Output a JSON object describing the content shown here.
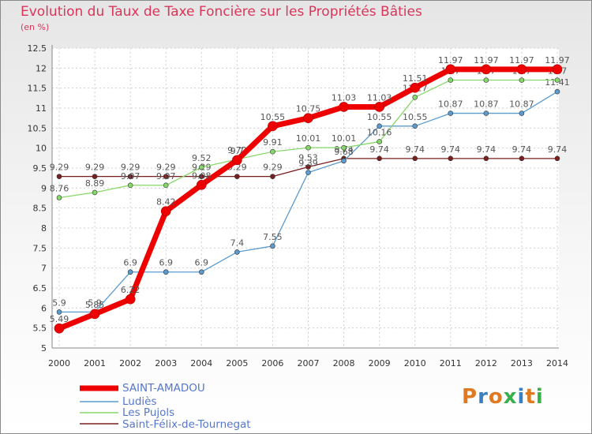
{
  "chart_data": {
    "type": "line",
    "title": "Evolution du Taux de Taxe Foncière sur les Propriétés Bâties",
    "unit_label": "(en %)",
    "x": [
      "2000",
      "2001",
      "2002",
      "2003",
      "2004",
      "2005",
      "2006",
      "2007",
      "2008",
      "2009",
      "2010",
      "2011",
      "2012",
      "2013",
      "2014"
    ],
    "ylim": [
      5,
      12.5
    ],
    "yticks": [
      "5",
      "5.5",
      "6",
      "6.5",
      "7",
      "7.5",
      "8",
      "8.5",
      "9",
      "9.5",
      "10",
      "10.5",
      "11",
      "11.5",
      "12",
      "12.5"
    ],
    "grid": true,
    "series": [
      {
        "name": "Saint-Félix-de-Tournegat",
        "color": "#7a1f1f",
        "width": 1.3,
        "values": [
          9.29,
          9.29,
          9.29,
          9.29,
          9.29,
          9.29,
          9.29,
          9.53,
          9.74,
          9.74,
          9.74,
          9.74,
          9.74,
          9.74,
          9.74
        ],
        "labels": [
          "9.29",
          "9.29",
          "9.29",
          "9.29",
          "9.29",
          "9.29",
          "9.29",
          "9.53",
          "9.74",
          "9.74",
          "9.74",
          "9.74",
          "9.74",
          "9.74",
          "9.74"
        ]
      },
      {
        "name": "Ludiès",
        "color": "#5c9bcf",
        "width": 1.3,
        "values": [
          5.9,
          5.9,
          6.9,
          6.9,
          6.9,
          7.4,
          7.55,
          9.39,
          9.68,
          10.55,
          10.55,
          10.87,
          10.87,
          10.87,
          11.41
        ],
        "labels": [
          "5.9",
          "5.9",
          "6.9",
          "6.9",
          "6.9",
          "7.4",
          "7.55",
          "9.39",
          "9.68",
          "10.55",
          "10.55",
          "10.87",
          "10.87",
          "10.87",
          "11.41"
        ]
      },
      {
        "name": "Les Pujols",
        "color": "#86d86a",
        "width": 1.3,
        "values": [
          8.76,
          8.89,
          9.07,
          9.07,
          9.52,
          9.72,
          9.91,
          10.01,
          10.01,
          10.16,
          11.27,
          11.7,
          11.7,
          11.7,
          11.7
        ],
        "labels": [
          "8.76",
          "8.89",
          "9.07",
          "9.07",
          "9.52",
          "9.72",
          "9.91",
          "10.01",
          "10.01",
          "10.16",
          "11.27",
          "11.7",
          "11.7",
          "11.7",
          "11.7"
        ]
      },
      {
        "name": "SAINT-AMADOU",
        "color": "#ee0000",
        "width": 7,
        "values": [
          5.49,
          5.85,
          6.22,
          8.42,
          9.08,
          9.7,
          10.55,
          10.75,
          11.03,
          11.03,
          11.51,
          11.97,
          11.97,
          11.97,
          11.97
        ],
        "labels": [
          "5.49",
          "5.85",
          "6.22",
          "8.42",
          "9.08",
          "9.7",
          "10.55",
          "10.75",
          "11.03",
          "11.03",
          "11.51",
          "11.97",
          "11.97",
          "11.97",
          "11.97"
        ]
      }
    ]
  },
  "legend": [
    {
      "label": "SAINT-AMADOU",
      "color": "#ee0000"
    },
    {
      "label": "Ludiès",
      "color": "#5c9bcf"
    },
    {
      "label": "Les Pujols",
      "color": "#86d86a"
    },
    {
      "label": "Saint-Félix-de-Tournegat",
      "color": "#7a1f1f"
    }
  ],
  "logo": {
    "text": "Proxiti",
    "colors": [
      "#e07a22",
      "#3a7fc1",
      "#e07a22",
      "#3ab04a",
      "#3a7fc1",
      "#e07a22",
      "#3ab04a"
    ]
  }
}
